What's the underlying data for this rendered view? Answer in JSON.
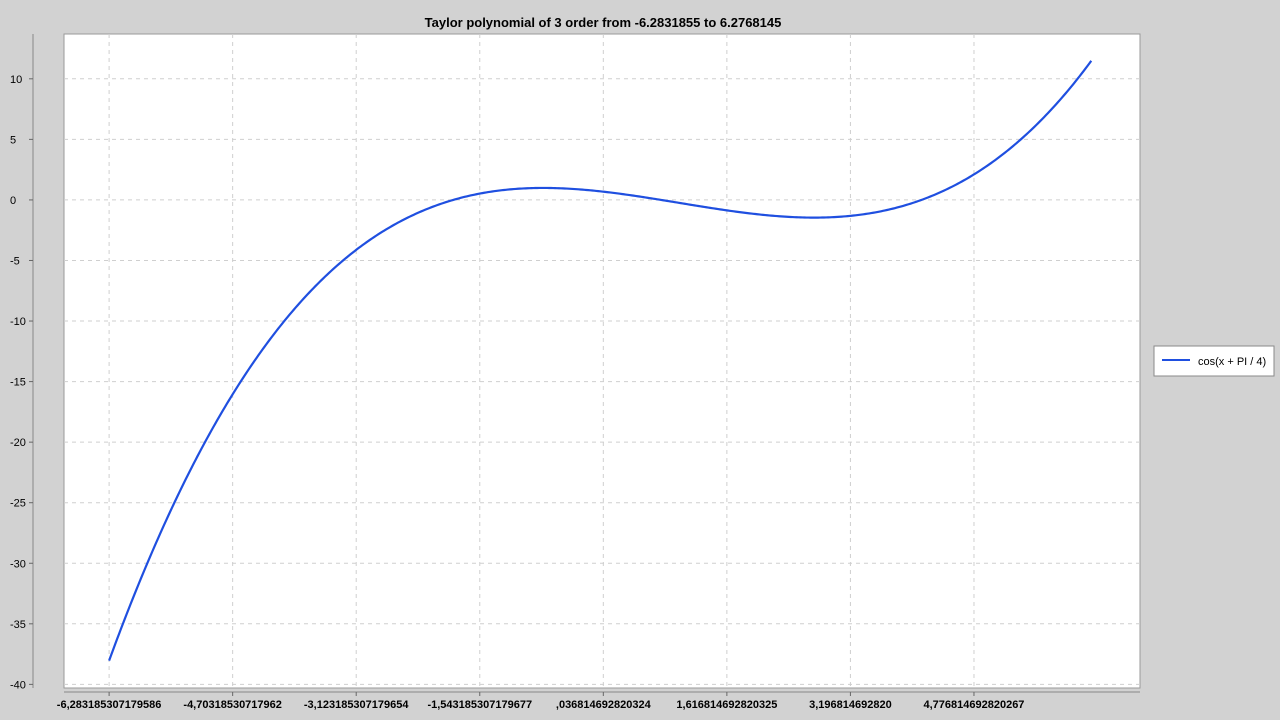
{
  "chart_data": {
    "type": "line",
    "title": "Taylor polynomial of 3 order from -6.2831855 to 6.2768145",
    "xlabel": "",
    "ylabel": "",
    "xlim": [
      -6.86,
      6.9
    ],
    "ylim": [
      -40.3,
      13.7
    ],
    "x_tick_values": [
      -6.283185307179586,
      -4.70318530717962,
      -3.123185307179654,
      -1.543185307179677,
      0.036814692820324,
      1.616814692820325,
      3.19681469282032,
      4.776814692820267
    ],
    "x_tick_labels": [
      "-6,283185307179586",
      "-4,70318530717962",
      "-3,123185307179654",
      "-1,543185307179677",
      ",036814692820324",
      "1,616814692820325",
      "3,196814692820",
      "4,776814692820267"
    ],
    "y_ticks": [
      10,
      5,
      0,
      -5,
      -10,
      -15,
      -20,
      -25,
      -30,
      -35,
      -40
    ],
    "grid": true,
    "legend_position": "right",
    "series": [
      {
        "name": "cos(x + PI / 4)",
        "color": "#1f4fe0",
        "function": "taylor3_cos_x_plus_pi_over_4",
        "x_start": -6.2831855,
        "x_end": 6.2768145,
        "sample_points": [
          {
            "x": -6.2831855,
            "y": -38.0
          },
          {
            "x": -4.70318531,
            "y": -16.8
          },
          {
            "x": -3.12318531,
            "y": -4.1
          },
          {
            "x": -1.54318531,
            "y": 0.46
          },
          {
            "x": -0.58,
            "y": 0.92
          },
          {
            "x": 0.03681469,
            "y": 0.68
          },
          {
            "x": 1.61681469,
            "y": -0.99
          },
          {
            "x": 2.58,
            "y": -1.49
          },
          {
            "x": 3.19681469,
            "y": -1.3
          },
          {
            "x": 4.77681469,
            "y": 1.7
          },
          {
            "x": 6.2768145,
            "y": 11.4
          }
        ]
      }
    ]
  }
}
